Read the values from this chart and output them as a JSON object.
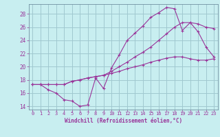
{
  "xlabel": "Windchill (Refroidissement éolien,°C)",
  "background_color": "#c8eef0",
  "grid_color": "#a0c8d0",
  "line_color": "#993399",
  "xlim": [
    -0.5,
    23.5
  ],
  "ylim": [
    13.5,
    29.5
  ],
  "xticks": [
    0,
    1,
    2,
    3,
    4,
    5,
    6,
    7,
    8,
    9,
    10,
    11,
    12,
    13,
    14,
    15,
    16,
    17,
    18,
    19,
    20,
    21,
    22,
    23
  ],
  "yticks": [
    14,
    16,
    18,
    20,
    22,
    24,
    26,
    28
  ],
  "line1_x": [
    0,
    1,
    2,
    3,
    4,
    5,
    6,
    7,
    8,
    9,
    10,
    11,
    12,
    13,
    14,
    15,
    16,
    17,
    18,
    19,
    20,
    21,
    22,
    23
  ],
  "line1_y": [
    17.3,
    17.3,
    16.5,
    16.0,
    15.0,
    14.8,
    14.0,
    14.2,
    18.3,
    16.7,
    19.8,
    21.8,
    24.0,
    25.1,
    26.2,
    27.5,
    28.2,
    29.0,
    28.8,
    25.5,
    26.7,
    25.3,
    23.0,
    21.5
  ],
  "line2_x": [
    0,
    1,
    2,
    3,
    4,
    5,
    6,
    7,
    8,
    9,
    10,
    11,
    12,
    13,
    14,
    15,
    16,
    17,
    18,
    19,
    20,
    21,
    22,
    23
  ],
  "line2_y": [
    17.3,
    17.3,
    17.3,
    17.3,
    17.3,
    17.8,
    18.0,
    18.3,
    18.5,
    18.7,
    19.0,
    19.3,
    19.7,
    20.0,
    20.3,
    20.7,
    21.0,
    21.3,
    21.5,
    21.5,
    21.2,
    21.0,
    21.0,
    21.2
  ],
  "line3_x": [
    0,
    1,
    2,
    3,
    4,
    5,
    6,
    7,
    8,
    9,
    10,
    11,
    12,
    13,
    14,
    15,
    16,
    17,
    18,
    19,
    20,
    21,
    22,
    23
  ],
  "line3_y": [
    17.3,
    17.3,
    17.3,
    17.3,
    17.3,
    17.8,
    18.0,
    18.3,
    18.5,
    18.7,
    19.3,
    20.0,
    20.7,
    21.5,
    22.2,
    23.0,
    24.0,
    25.0,
    26.0,
    26.7,
    26.7,
    26.5,
    26.0,
    25.8
  ]
}
